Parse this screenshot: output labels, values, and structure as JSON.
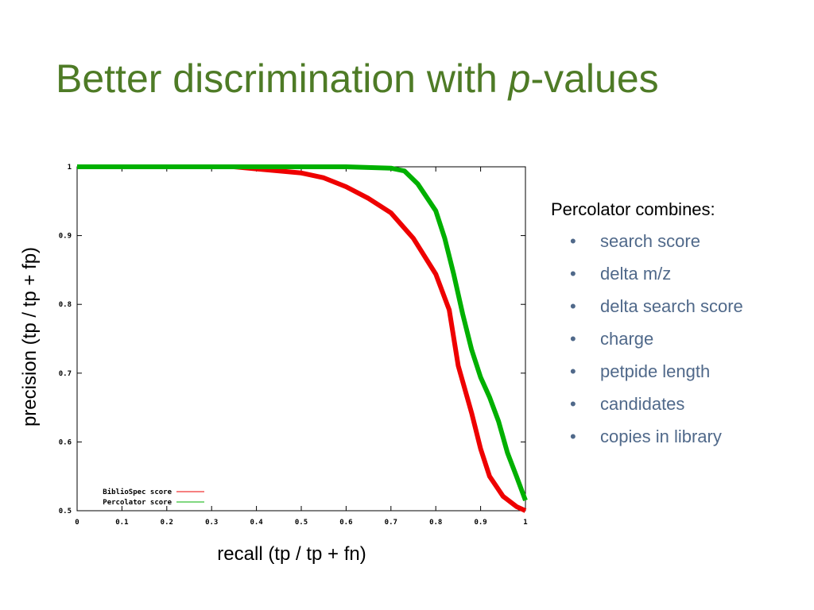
{
  "slide": {
    "title": [
      "Better discrimination with ",
      "p",
      "-values"
    ],
    "list_heading": "Percolator combines:",
    "list_items": [
      "search score",
      "delta m/z",
      "delta search score",
      "charge",
      "petpide length",
      "candidates",
      "copies in library"
    ]
  },
  "chart_data": {
    "type": "line",
    "x_label": "recall (tp / tp + fn)",
    "y_label": "precision (tp / tp + fp)",
    "xlim": [
      0,
      1
    ],
    "ylim": [
      0.5,
      1
    ],
    "xticks": [
      0,
      0.1,
      0.2,
      0.3,
      0.4,
      0.5,
      0.6,
      0.7,
      0.8,
      0.9,
      1
    ],
    "yticks": [
      0.5,
      0.6,
      0.7,
      0.8,
      0.9,
      1
    ],
    "series": [
      {
        "name": "BiblioSpec score",
        "color": "#ee0000",
        "x": [
          0,
          0.35,
          0.4,
          0.5,
          0.55,
          0.6,
          0.65,
          0.7,
          0.75,
          0.8,
          0.83,
          0.85,
          0.88,
          0.9,
          0.92,
          0.95,
          0.98,
          1
        ],
        "values": [
          1,
          1,
          0.997,
          0.991,
          0.984,
          0.971,
          0.954,
          0.933,
          0.896,
          0.844,
          0.792,
          0.711,
          0.642,
          0.59,
          0.55,
          0.521,
          0.506,
          0.5
        ]
      },
      {
        "name": "Percolator score",
        "color": "#00b000",
        "x": [
          0,
          0.6,
          0.7,
          0.73,
          0.76,
          0.8,
          0.82,
          0.84,
          0.86,
          0.88,
          0.9,
          0.92,
          0.94,
          0.96,
          0.98,
          1
        ],
        "values": [
          1,
          1,
          0.998,
          0.994,
          0.975,
          0.936,
          0.896,
          0.844,
          0.786,
          0.734,
          0.694,
          0.665,
          0.63,
          0.584,
          0.55,
          0.515
        ]
      }
    ]
  }
}
